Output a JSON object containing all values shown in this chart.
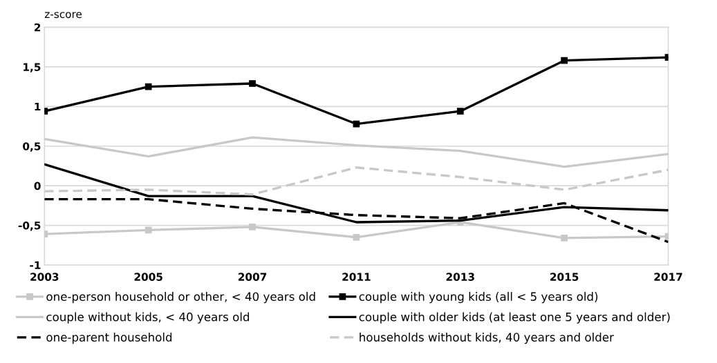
{
  "chart_data": {
    "type": "line",
    "ylabel": "z-score",
    "categories": [
      "2003",
      "2005",
      "2007",
      "2011",
      "2013",
      "2015",
      "2017"
    ],
    "ylim": [
      -1,
      2
    ],
    "yticks": [
      -1,
      {
        "value": -0.5,
        "label": "-0,5"
      },
      0,
      {
        "value": 0.5,
        "label": "0,5"
      },
      1,
      {
        "value": 1.5,
        "label": "1,5"
      },
      2
    ],
    "grid": "y",
    "legend": "bottom",
    "series": [
      {
        "name": "one-person household or other, < 40 years old",
        "color": "#c8c8c8",
        "marker": "square",
        "line_style": "solid",
        "values": [
          -0.61,
          -0.56,
          -0.52,
          -0.65,
          -0.46,
          -0.66,
          -0.64
        ]
      },
      {
        "name": "couple without kids, < 40 years old",
        "color": "#c8c8c8",
        "marker": "none",
        "line_style": "solid",
        "values": [
          0.59,
          0.37,
          0.61,
          0.51,
          0.44,
          0.24,
          0.4
        ]
      },
      {
        "name": "one-parent household",
        "color": "#000000",
        "marker": "none",
        "line_style": "dashed",
        "values": [
          -0.17,
          -0.17,
          -0.29,
          -0.37,
          -0.41,
          -0.22,
          -0.71
        ]
      },
      {
        "name": "couple with young kids (all < 5 years old)",
        "color": "#000000",
        "marker": "square",
        "line_style": "solid",
        "values": [
          0.94,
          1.25,
          1.29,
          0.78,
          0.94,
          1.58,
          1.62
        ]
      },
      {
        "name": "couple with older kids (at least one 5 years and older)",
        "color": "#000000",
        "marker": "none",
        "line_style": "solid",
        "values": [
          0.27,
          -0.13,
          -0.13,
          -0.46,
          -0.44,
          -0.27,
          -0.31
        ]
      },
      {
        "name": "households without kids, 40 years and older",
        "color": "#c8c8c8",
        "marker": "none",
        "line_style": "dashed",
        "values": [
          -0.07,
          -0.05,
          -0.11,
          0.23,
          0.11,
          -0.05,
          0.2
        ]
      }
    ]
  }
}
